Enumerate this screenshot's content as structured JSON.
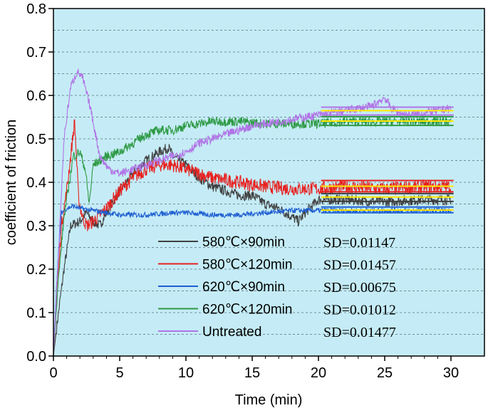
{
  "chart_data": {
    "type": "line",
    "title": "",
    "xlabel": "Time (min)",
    "ylabel": "coefficient of friction",
    "xlim": [
      0,
      31
    ],
    "ylim": [
      0,
      0.8
    ],
    "xticks": [
      0,
      5,
      10,
      15,
      20,
      25,
      30
    ],
    "xtick_labels": [
      "0",
      "5",
      "10",
      "15",
      "20",
      "25",
      "30"
    ],
    "yticks": [
      0.0,
      0.1,
      0.2,
      0.3,
      0.4,
      0.5,
      0.6,
      0.7,
      0.8
    ],
    "ytick_labels": [
      "0.0",
      "0.1",
      "0.2",
      "0.3",
      "0.4",
      "0.5",
      "0.6",
      "0.7",
      "0.8"
    ],
    "grid": "horizontal dashed (minor included)",
    "plot_background": "#c5ecf6",
    "legend_position": "lower-center",
    "series": [
      {
        "name": "580℃×90min",
        "sd": "SD=0.01147",
        "color": "#404040",
        "noise": 0.012,
        "points": [
          [
            0,
            0
          ],
          [
            0.3,
            0.08
          ],
          [
            0.8,
            0.2
          ],
          [
            1.3,
            0.3
          ],
          [
            2,
            0.31
          ],
          [
            2.5,
            0.33
          ],
          [
            3,
            0.31
          ],
          [
            3.5,
            0.3
          ],
          [
            4,
            0.33
          ],
          [
            5,
            0.38
          ],
          [
            6,
            0.42
          ],
          [
            7,
            0.45
          ],
          [
            8,
            0.47
          ],
          [
            8.7,
            0.48
          ],
          [
            9,
            0.46
          ],
          [
            10,
            0.44
          ],
          [
            11,
            0.41
          ],
          [
            12,
            0.39
          ],
          [
            13,
            0.38
          ],
          [
            14,
            0.37
          ],
          [
            15,
            0.37
          ],
          [
            16,
            0.35
          ],
          [
            17,
            0.34
          ],
          [
            18,
            0.32
          ],
          [
            18.5,
            0.31
          ],
          [
            19,
            0.33
          ],
          [
            20,
            0.36
          ],
          [
            22,
            0.36
          ],
          [
            25,
            0.355
          ],
          [
            28,
            0.36
          ],
          [
            30,
            0.36
          ]
        ],
        "mean_lines": [
          0.356,
          0.366,
          0.374
        ]
      },
      {
        "name": "580℃×120min",
        "sd": "SD=0.01457",
        "color": "#e8201e",
        "noise": 0.016,
        "points": [
          [
            0,
            0
          ],
          [
            0.3,
            0.15
          ],
          [
            0.6,
            0.3
          ],
          [
            1,
            0.38
          ],
          [
            1.6,
            0.54
          ],
          [
            1.9,
            0.36
          ],
          [
            2.2,
            0.32
          ],
          [
            2.5,
            0.3
          ],
          [
            3,
            0.31
          ],
          [
            4,
            0.34
          ],
          [
            5,
            0.38
          ],
          [
            6,
            0.41
          ],
          [
            7,
            0.43
          ],
          [
            8,
            0.44
          ],
          [
            9,
            0.44
          ],
          [
            10,
            0.43
          ],
          [
            11,
            0.42
          ],
          [
            12,
            0.41
          ],
          [
            14,
            0.4
          ],
          [
            16,
            0.39
          ],
          [
            18,
            0.385
          ],
          [
            20,
            0.385
          ],
          [
            22,
            0.39
          ],
          [
            25,
            0.385
          ],
          [
            28,
            0.39
          ],
          [
            30,
            0.39
          ]
        ],
        "mean_lines": [
          0.378,
          0.391,
          0.404
        ]
      },
      {
        "name": "620℃×90min",
        "sd": "SD=0.00675",
        "color": "#1f5fd1",
        "noise": 0.006,
        "points": [
          [
            0,
            0
          ],
          [
            0.3,
            0.2
          ],
          [
            0.6,
            0.33
          ],
          [
            1,
            0.34
          ],
          [
            1.5,
            0.345
          ],
          [
            2,
            0.34
          ],
          [
            3,
            0.335
          ],
          [
            4,
            0.33
          ],
          [
            5,
            0.325
          ],
          [
            7,
            0.325
          ],
          [
            9,
            0.33
          ],
          [
            10,
            0.33
          ],
          [
            12,
            0.325
          ],
          [
            14,
            0.325
          ],
          [
            16,
            0.33
          ],
          [
            18,
            0.335
          ],
          [
            19,
            0.335
          ],
          [
            20,
            0.335
          ],
          [
            22,
            0.335
          ],
          [
            25,
            0.335
          ],
          [
            28,
            0.335
          ],
          [
            30,
            0.335
          ]
        ],
        "mean_lines": [
          0.33,
          0.336,
          0.343
        ]
      },
      {
        "name": "620℃×120min",
        "sd": "SD=0.01012",
        "color": "#2e9a45",
        "noise": 0.011,
        "points": [
          [
            0,
            0
          ],
          [
            0.3,
            0.15
          ],
          [
            0.8,
            0.32
          ],
          [
            1.2,
            0.4
          ],
          [
            1.5,
            0.46
          ],
          [
            2,
            0.47
          ],
          [
            2.4,
            0.43
          ],
          [
            2.7,
            0.35
          ],
          [
            3,
            0.44
          ],
          [
            4,
            0.46
          ],
          [
            5,
            0.47
          ],
          [
            6,
            0.49
          ],
          [
            7,
            0.51
          ],
          [
            8,
            0.52
          ],
          [
            9,
            0.52
          ],
          [
            10,
            0.53
          ],
          [
            12,
            0.54
          ],
          [
            14,
            0.54
          ],
          [
            16,
            0.535
          ],
          [
            18,
            0.535
          ],
          [
            20,
            0.535
          ],
          [
            22,
            0.54
          ],
          [
            25,
            0.54
          ],
          [
            28,
            0.54
          ],
          [
            30,
            0.54
          ]
        ],
        "mean_lines": [
          0.531,
          0.541,
          0.551
        ]
      },
      {
        "name": "Untreated",
        "sd": "SD=0.01477",
        "color": "#b074e6",
        "noise": 0.01,
        "points": [
          [
            0,
            0
          ],
          [
            0.4,
            0.25
          ],
          [
            0.8,
            0.5
          ],
          [
            1.3,
            0.62
          ],
          [
            1.8,
            0.655
          ],
          [
            2.2,
            0.64
          ],
          [
            2.8,
            0.57
          ],
          [
            3.5,
            0.46
          ],
          [
            4.2,
            0.43
          ],
          [
            5,
            0.42
          ],
          [
            6,
            0.43
          ],
          [
            7,
            0.44
          ],
          [
            8,
            0.45
          ],
          [
            9,
            0.46
          ],
          [
            10,
            0.47
          ],
          [
            11,
            0.49
          ],
          [
            12,
            0.5
          ],
          [
            13,
            0.51
          ],
          [
            14,
            0.52
          ],
          [
            15,
            0.53
          ],
          [
            16,
            0.535
          ],
          [
            17,
            0.54
          ],
          [
            18,
            0.545
          ],
          [
            19,
            0.55
          ],
          [
            20,
            0.555
          ],
          [
            22,
            0.565
          ],
          [
            24,
            0.575
          ],
          [
            25,
            0.595
          ],
          [
            25.5,
            0.57
          ],
          [
            26,
            0.56
          ],
          [
            27,
            0.555
          ],
          [
            28,
            0.56
          ],
          [
            30,
            0.57
          ]
        ],
        "mean_lines": [
          0.555,
          0.565,
          0.573
        ]
      }
    ],
    "mean_line_colors": [
      "#ffe800",
      "#ffe800",
      "#ffe800"
    ],
    "mean_line_range": [
      20.2,
      30.2
    ]
  }
}
